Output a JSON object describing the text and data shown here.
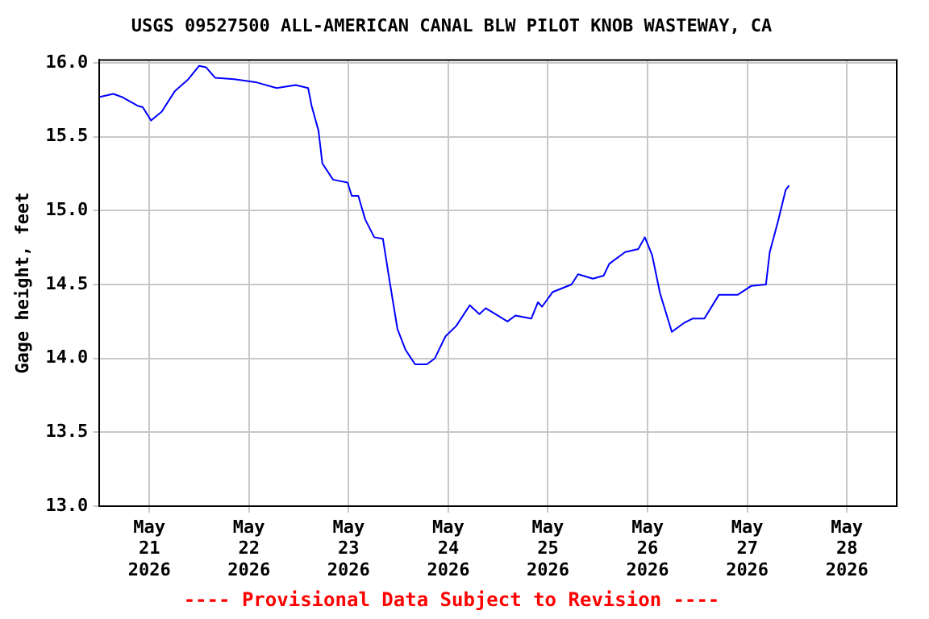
{
  "chart_data": {
    "type": "line",
    "title": "USGS 09527500 ALL-AMERICAN CANAL BLW PILOT KNOB WASTEWAY, CA",
    "ylabel": "Gage height, feet",
    "annotations": [
      "---- Provisional Data Subject to Revision ----"
    ],
    "x": [
      "2026-05-20T12:05",
      "2026-05-20T15:20",
      "2026-05-20T17:20",
      "2026-05-20T21:10",
      "2026-05-20T22:25",
      "2026-05-21T00:25",
      "2026-05-21T03:00",
      "2026-05-21T06:10",
      "2026-05-21T09:25",
      "2026-05-21T12:00",
      "2026-05-21T13:40",
      "2026-05-21T15:50",
      "2026-05-21T20:25",
      "2026-05-22T01:35",
      "2026-05-22T06:40",
      "2026-05-22T11:15",
      "2026-05-22T14:15",
      "2026-05-22T15:05",
      "2026-05-22T16:45",
      "2026-05-22T17:40",
      "2026-05-22T20:15",
      "2026-05-22T23:45",
      "2026-05-23T00:45",
      "2026-05-23T02:20",
      "2026-05-23T04:00",
      "2026-05-23T06:10",
      "2026-05-23T08:15",
      "2026-05-23T09:50",
      "2026-05-23T11:45",
      "2026-05-23T13:40",
      "2026-05-23T16:00",
      "2026-05-23T18:50",
      "2026-05-23T20:45",
      "2026-05-23T23:20",
      "2026-05-24T01:55",
      "2026-05-24T05:10",
      "2026-05-24T07:30",
      "2026-05-24T09:00",
      "2026-05-24T11:20",
      "2026-05-24T14:15",
      "2026-05-24T16:10",
      "2026-05-24T20:00",
      "2026-05-24T21:35",
      "2026-05-24T22:35",
      "2026-05-25T01:10",
      "2026-05-25T05:40",
      "2026-05-25T07:15",
      "2026-05-25T10:50",
      "2026-05-25T13:25",
      "2026-05-25T14:45",
      "2026-05-25T18:35",
      "2026-05-25T21:45",
      "2026-05-25T23:20",
      "2026-05-26T01:05",
      "2026-05-26T03:00",
      "2026-05-26T05:50",
      "2026-05-26T08:45",
      "2026-05-26T10:55",
      "2026-05-26T13:40",
      "2026-05-26T17:10",
      "2026-05-26T21:40",
      "2026-05-27T00:55",
      "2026-05-27T04:30",
      "2026-05-27T05:25",
      "2026-05-27T07:20",
      "2026-05-27T09:15",
      "2026-05-27T10:05"
    ],
    "series": [
      {
        "color": "#0000ff",
        "values": [
          15.77,
          15.79,
          15.77,
          15.71,
          15.7,
          15.61,
          15.67,
          15.81,
          15.89,
          15.98,
          15.97,
          15.9,
          15.89,
          15.87,
          15.83,
          15.85,
          15.83,
          15.71,
          15.54,
          15.32,
          15.21,
          15.19,
          15.1,
          15.1,
          14.94,
          14.82,
          14.81,
          14.53,
          14.2,
          14.06,
          13.96,
          13.96,
          14.0,
          14.15,
          14.22,
          14.36,
          14.3,
          14.34,
          14.3,
          14.25,
          14.29,
          14.27,
          14.38,
          14.35,
          14.45,
          14.5,
          14.57,
          14.54,
          14.56,
          14.64,
          14.72,
          14.74,
          14.82,
          14.7,
          14.44,
          14.18,
          14.24,
          14.27,
          14.27,
          14.43,
          14.43,
          14.49,
          14.5,
          14.72,
          14.92,
          15.14,
          15.17
        ]
      }
    ],
    "xlim": [
      "2026-05-20T12:00",
      "2026-05-28T12:00"
    ],
    "xticks": [
      {
        "value": "2026-05-21",
        "label": "May 21 2026"
      },
      {
        "value": "2026-05-22",
        "label": "May 22 2026"
      },
      {
        "value": "2026-05-23",
        "label": "May 23 2026"
      },
      {
        "value": "2026-05-24",
        "label": "May 24 2026"
      },
      {
        "value": "2026-05-25",
        "label": "May 25 2026"
      },
      {
        "value": "2026-05-26",
        "label": "May 26 2026"
      },
      {
        "value": "2026-05-27",
        "label": "May 27 2026"
      },
      {
        "value": "2026-05-28",
        "label": "May 28 2026"
      }
    ],
    "ylim": [
      13,
      16.02
    ],
    "yticks": [
      {
        "value": 13,
        "label": "13.0"
      },
      {
        "value": 13.5,
        "label": "13.5"
      },
      {
        "value": 14,
        "label": "14.0"
      },
      {
        "value": 14.5,
        "label": "14.5"
      },
      {
        "value": 15,
        "label": "15.0"
      },
      {
        "value": 15.5,
        "label": "15.5"
      },
      {
        "value": 16,
        "label": "16.0"
      }
    ],
    "grid": true,
    "legend": false,
    "marker": "none",
    "line_style": "solid"
  }
}
